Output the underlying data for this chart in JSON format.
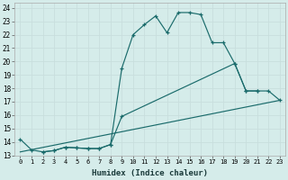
{
  "xlabel": "Humidex (Indice chaleur)",
  "bg_color": "#d5ecea",
  "line_color": "#1a6b6b",
  "grid_color": "#c8dedd",
  "yticks": [
    13,
    14,
    15,
    16,
    17,
    18,
    19,
    20,
    21,
    22,
    23,
    24
  ],
  "xticks": [
    0,
    1,
    2,
    3,
    4,
    5,
    6,
    7,
    8,
    9,
    10,
    11,
    12,
    13,
    14,
    15,
    16,
    17,
    18,
    19,
    20,
    21,
    22,
    23
  ],
  "xlim": [
    -0.5,
    23.5
  ],
  "ylim": [
    13,
    24.4
  ],
  "line1_x": [
    0,
    1,
    2,
    3,
    4,
    5,
    6,
    7,
    8,
    9,
    10,
    11,
    12,
    13,
    14,
    15,
    16,
    17,
    18,
    19,
    20,
    21
  ],
  "line1_y": [
    14.2,
    13.4,
    13.25,
    13.35,
    13.6,
    13.55,
    13.5,
    13.5,
    13.8,
    19.5,
    22.0,
    22.75,
    23.4,
    22.15,
    23.65,
    23.65,
    23.5,
    21.4,
    21.4,
    19.85,
    17.8,
    17.8
  ],
  "line2_x": [
    2,
    3,
    4,
    5,
    6,
    7,
    8,
    9,
    19,
    20,
    21,
    22,
    23
  ],
  "line2_y": [
    13.25,
    13.35,
    13.6,
    13.55,
    13.5,
    13.5,
    13.8,
    15.9,
    19.85,
    17.8,
    17.8,
    17.8,
    17.1
  ],
  "line3_x": [
    0,
    23
  ],
  "line3_y": [
    13.25,
    17.1
  ]
}
